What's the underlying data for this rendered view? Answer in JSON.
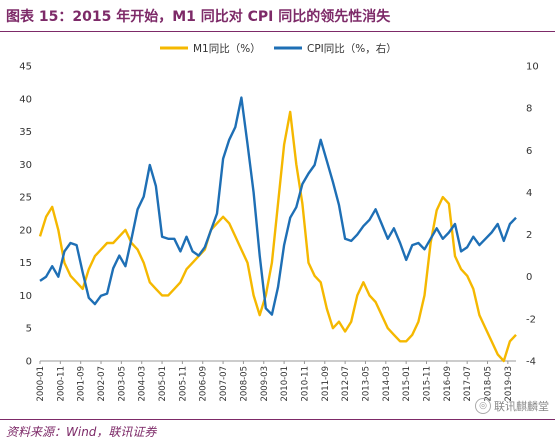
{
  "header": {
    "title": "图表 15：2015 年开始，M1 同比对 CPI 同比的领先性消失"
  },
  "footer": {
    "source": "资料来源：Wind，联讯证券",
    "watermark": "联讯麒麟堂"
  },
  "colors": {
    "m1": "#f5b800",
    "cpi": "#1e6fb5",
    "accent": "#7d2a68"
  },
  "chart_data": {
    "type": "line",
    "title": "",
    "x_tick_labels": [
      "2000-01",
      "2000-11",
      "2001-09",
      "2002-07",
      "2003-05",
      "2004-03",
      "2005-01",
      "2005-11",
      "2006-09",
      "2007-07",
      "2008-05",
      "2009-03",
      "2010-01",
      "2010-11",
      "2011-09",
      "2012-07",
      "2013-05",
      "2014-03",
      "2015-01",
      "2015-11",
      "2016-09",
      "2017-07",
      "2018-05",
      "2019-03"
    ],
    "ylim_left": [
      0,
      45
    ],
    "ylim_right": [
      -4,
      10
    ],
    "yticks_left": [
      0,
      5,
      10,
      15,
      20,
      25,
      30,
      35,
      40,
      45
    ],
    "yticks_right": [
      -4,
      -2,
      0,
      2,
      4,
      6,
      8,
      10
    ],
    "legend_position": "top-center",
    "series": [
      {
        "name": "M1同比（%）",
        "axis": "left",
        "color": "#f5b800",
        "x": [
          "2000-01",
          "2000-04",
          "2000-07",
          "2000-10",
          "2001-01",
          "2001-04",
          "2001-07",
          "2001-10",
          "2002-01",
          "2002-04",
          "2002-07",
          "2002-10",
          "2003-01",
          "2003-04",
          "2003-07",
          "2003-10",
          "2004-01",
          "2004-04",
          "2004-07",
          "2004-10",
          "2005-01",
          "2005-04",
          "2005-07",
          "2005-10",
          "2006-01",
          "2006-04",
          "2006-07",
          "2006-10",
          "2007-01",
          "2007-04",
          "2007-07",
          "2007-10",
          "2008-01",
          "2008-04",
          "2008-07",
          "2008-10",
          "2009-01",
          "2009-04",
          "2009-07",
          "2009-10",
          "2010-01",
          "2010-04",
          "2010-07",
          "2010-10",
          "2011-01",
          "2011-04",
          "2011-07",
          "2011-10",
          "2012-01",
          "2012-04",
          "2012-07",
          "2012-10",
          "2013-01",
          "2013-04",
          "2013-07",
          "2013-10",
          "2014-01",
          "2014-04",
          "2014-07",
          "2014-10",
          "2015-01",
          "2015-04",
          "2015-07",
          "2015-10",
          "2016-01",
          "2016-04",
          "2016-07",
          "2016-10",
          "2017-01",
          "2017-04",
          "2017-07",
          "2017-10",
          "2018-01",
          "2018-04",
          "2018-07",
          "2018-10",
          "2019-01",
          "2019-04",
          "2019-07"
        ],
        "values": [
          19,
          22,
          23.5,
          20,
          15,
          13,
          12,
          11,
          14,
          16,
          17,
          18,
          18,
          19,
          20,
          18,
          17,
          15,
          12,
          11,
          10,
          10,
          11,
          12,
          14,
          15,
          16,
          17,
          20,
          21,
          22,
          21,
          19,
          17,
          15,
          10,
          7,
          10,
          15,
          24,
          33,
          38,
          30,
          24,
          15,
          13,
          12,
          8,
          5,
          6,
          4.5,
          6,
          10,
          12,
          10,
          9,
          7,
          5,
          4,
          3,
          3,
          4,
          6,
          10,
          18,
          23,
          25,
          24,
          16,
          14,
          13,
          11,
          7,
          5,
          3,
          1,
          0,
          3,
          4
        ]
      },
      {
        "name": "CPI同比（%，右）",
        "axis": "right",
        "color": "#1e6fb5",
        "x": [
          "2000-01",
          "2000-04",
          "2000-07",
          "2000-10",
          "2001-01",
          "2001-04",
          "2001-07",
          "2001-10",
          "2002-01",
          "2002-04",
          "2002-07",
          "2002-10",
          "2003-01",
          "2003-04",
          "2003-07",
          "2003-10",
          "2004-01",
          "2004-04",
          "2004-07",
          "2004-10",
          "2005-01",
          "2005-04",
          "2005-07",
          "2005-10",
          "2006-01",
          "2006-04",
          "2006-07",
          "2006-10",
          "2007-01",
          "2007-04",
          "2007-07",
          "2007-10",
          "2008-01",
          "2008-04",
          "2008-07",
          "2008-10",
          "2009-01",
          "2009-04",
          "2009-07",
          "2009-10",
          "2010-01",
          "2010-04",
          "2010-07",
          "2010-10",
          "2011-01",
          "2011-04",
          "2011-07",
          "2011-10",
          "2012-01",
          "2012-04",
          "2012-07",
          "2012-10",
          "2013-01",
          "2013-04",
          "2013-07",
          "2013-10",
          "2014-01",
          "2014-04",
          "2014-07",
          "2014-10",
          "2015-01",
          "2015-04",
          "2015-07",
          "2015-10",
          "2016-01",
          "2016-04",
          "2016-07",
          "2016-10",
          "2017-01",
          "2017-04",
          "2017-07",
          "2017-10",
          "2018-01",
          "2018-04",
          "2018-07",
          "2018-10",
          "2019-01",
          "2019-04",
          "2019-07"
        ],
        "values": [
          -0.2,
          0.0,
          0.5,
          0.0,
          1.2,
          1.6,
          1.5,
          0.2,
          -1.0,
          -1.3,
          -0.9,
          -0.8,
          0.4,
          1.0,
          0.5,
          1.8,
          3.2,
          3.8,
          5.3,
          4.3,
          1.9,
          1.8,
          1.8,
          1.2,
          1.9,
          1.2,
          1.0,
          1.4,
          2.2,
          3.0,
          5.6,
          6.5,
          7.1,
          8.5,
          6.3,
          4.0,
          1.0,
          -1.5,
          -1.8,
          -0.5,
          1.5,
          2.8,
          3.3,
          4.4,
          4.9,
          5.3,
          6.5,
          5.5,
          4.5,
          3.4,
          1.8,
          1.7,
          2.0,
          2.4,
          2.7,
          3.2,
          2.5,
          1.8,
          2.3,
          1.6,
          0.8,
          1.5,
          1.6,
          1.3,
          1.8,
          2.3,
          1.8,
          2.1,
          2.5,
          1.2,
          1.4,
          1.9,
          1.5,
          1.8,
          2.1,
          2.5,
          1.7,
          2.5,
          2.8
        ]
      }
    ]
  }
}
